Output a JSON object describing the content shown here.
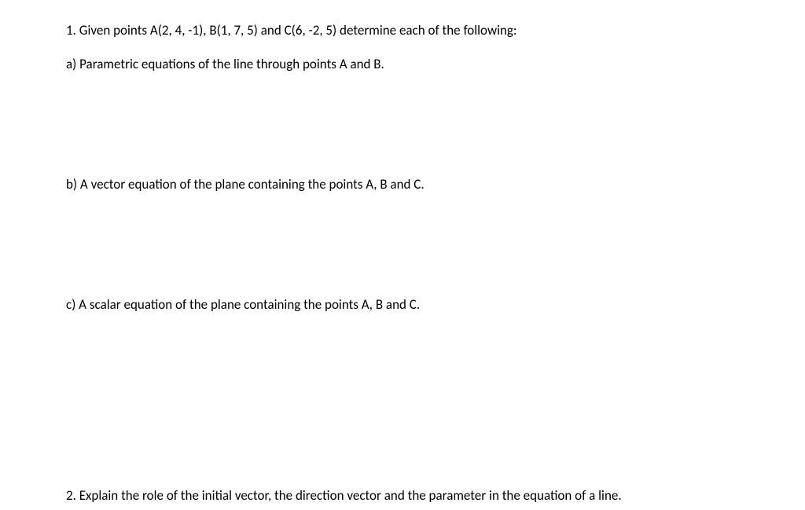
{
  "page": {
    "background_color": "#ffffff",
    "text_color": "#000000",
    "font_family": "Calibri",
    "font_size_pt": 13
  },
  "q1": {
    "intro": "1. Given points A(2, 4, -1), B(1, 7, 5) and C(6, -2, 5) determine each of the following:",
    "a": "a) Parametric equations of the line through points A and B.",
    "b": "b) A vector equation of the plane containing the points A, B and C.",
    "c": "c) A scalar equation of the plane containing the points A, B and C."
  },
  "q2": {
    "text": "2. Explain the role of the initial vector, the direction vector and the parameter in the equation of a line."
  }
}
